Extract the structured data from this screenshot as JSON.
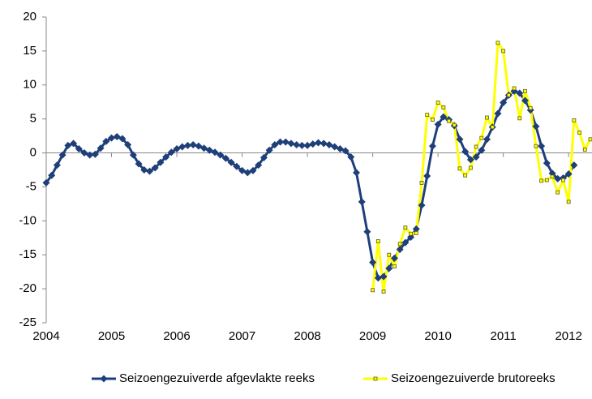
{
  "chart_data": {
    "type": "line",
    "categories": [
      "2004",
      null,
      null,
      null,
      null,
      null,
      null,
      null,
      null,
      null,
      null,
      null,
      "2005",
      null,
      null,
      null,
      null,
      null,
      null,
      null,
      null,
      null,
      null,
      null,
      "2006",
      null,
      null,
      null,
      null,
      null,
      null,
      null,
      null,
      null,
      null,
      null,
      "2007",
      null,
      null,
      null,
      null,
      null,
      null,
      null,
      null,
      null,
      null,
      null,
      "2008",
      null,
      null,
      null,
      null,
      null,
      null,
      null,
      null,
      null,
      null,
      null,
      "2009",
      null,
      null,
      null,
      null,
      null,
      null,
      null,
      null,
      null,
      null,
      null,
      "2010",
      null,
      null,
      null,
      null,
      null,
      null,
      null,
      null,
      null,
      null,
      null,
      "2011",
      null,
      null,
      null,
      null,
      null,
      null,
      null,
      null,
      null,
      null,
      null,
      "2012",
      null,
      null,
      null,
      null
    ],
    "series": [
      {
        "name": "Seizoengezuiverde afgevlakte reeks",
        "color": "#1f3f7a",
        "values": [
          -4.4,
          -3.3,
          -1.8,
          -0.3,
          1.1,
          1.4,
          0.6,
          0,
          -0.3,
          -0.2,
          0.7,
          1.7,
          2.2,
          2.4,
          2.1,
          1.2,
          -0.3,
          -1.6,
          -2.5,
          -2.7,
          -2.2,
          -1.4,
          -0.6,
          0.1,
          0.6,
          0.9,
          1.1,
          1.2,
          1.0,
          0.7,
          0.4,
          0.1,
          -0.3,
          -0.8,
          -1.4,
          -2.0,
          -2.6,
          -2.9,
          -2.6,
          -1.8,
          -0.7,
          0.4,
          1.2,
          1.6,
          1.6,
          1.4,
          1.2,
          1.1,
          1.1,
          1.3,
          1.5,
          1.4,
          1.2,
          0.9,
          0.6,
          0.3,
          -0.6,
          -2.9,
          -7.2,
          -11.6,
          -16.1,
          -18.4,
          -18.2,
          -17.0,
          -15.5,
          -14.2,
          -13.2,
          -12.4,
          -11.2,
          -7.7,
          -3.4,
          1.0,
          4.2,
          5.3,
          4.9,
          4.0,
          2.0,
          0.2,
          -1.0,
          -0.6,
          0.4,
          2.0,
          3.8,
          5.8,
          7.4,
          8.5,
          9.1,
          8.8,
          7.7,
          6.3,
          3.9,
          1.0,
          -1.5,
          -3.0,
          -3.8,
          -3.7,
          -3.1,
          -1.8,
          null,
          null,
          null
        ]
      },
      {
        "name": "Seizoengezuiverde brutoreeks",
        "color": "#ffff00",
        "values": [
          null,
          null,
          null,
          null,
          null,
          null,
          null,
          null,
          null,
          null,
          null,
          null,
          null,
          null,
          null,
          null,
          null,
          null,
          null,
          null,
          null,
          null,
          null,
          null,
          null,
          null,
          null,
          null,
          null,
          null,
          null,
          null,
          null,
          null,
          null,
          null,
          null,
          null,
          null,
          null,
          null,
          null,
          null,
          null,
          null,
          null,
          null,
          null,
          null,
          null,
          null,
          null,
          null,
          null,
          null,
          null,
          null,
          null,
          null,
          null,
          -20.2,
          -13.0,
          -20.4,
          -15.0,
          -16.7,
          -13.4,
          -11.0,
          -11.9,
          -11.8,
          -4.4,
          5.6,
          4.9,
          7.4,
          6.7,
          4.7,
          4.1,
          -2.3,
          -3.3,
          -2.2,
          0.9,
          2.2,
          5.2,
          3.8,
          16.2,
          15.0,
          8.5,
          9.5,
          5.1,
          9.1,
          6.6,
          1.0,
          -4.1,
          -4.0,
          -3.5,
          -5.8,
          -4.0,
          -7.2,
          4.8,
          3.0,
          0.5,
          2.0
        ]
      }
    ],
    "ylim": [
      -25,
      20
    ],
    "yticks": [
      -25,
      -20,
      -15,
      -10,
      -5,
      0,
      5,
      10,
      15,
      20
    ],
    "grid": false,
    "legend": "bottom"
  }
}
